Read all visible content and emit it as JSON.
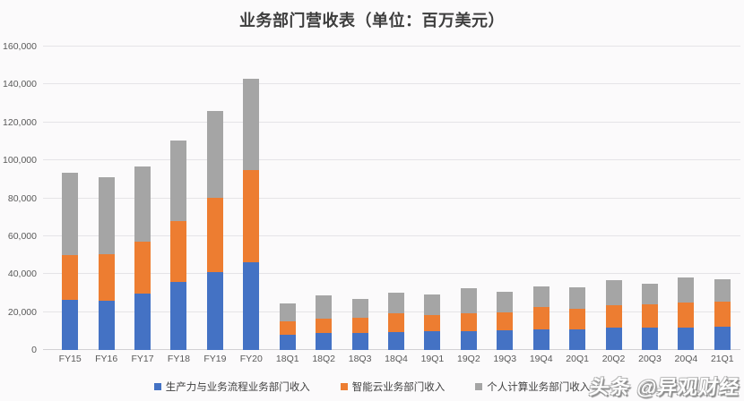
{
  "title": "业务部门营收表（单位：百万美元）",
  "watermark": {
    "text": "头条 @异观财经"
  },
  "colors": {
    "background": "#fbfafb",
    "gridline": "#e5e4e7",
    "axis_text": "#595959",
    "title_text": "#3d3d3d",
    "series_blue": "#4472C4",
    "series_orange": "#ED7D31",
    "series_gray": "#A5A5A5"
  },
  "y_axis": {
    "step": 20000,
    "ticks": [
      "0",
      "20,000",
      "40,000",
      "60,000",
      "80,000",
      "100,000",
      "120,000",
      "140,000",
      "160,000"
    ]
  },
  "chart_data": {
    "type": "bar",
    "stacked": true,
    "title": "业务部门营收表（单位：百万美元）",
    "xlabel": "",
    "ylabel": "",
    "ylim": [
      0,
      160000
    ],
    "grid": true,
    "legend_position": "bottom",
    "categories": [
      "FY15",
      "FY16",
      "FY17",
      "FY18",
      "FY19",
      "FY20",
      "18Q1",
      "18Q2",
      "18Q3",
      "18Q4",
      "19Q1",
      "19Q2",
      "19Q3",
      "19Q4",
      "20Q1",
      "20Q2",
      "20Q3",
      "20Q4",
      "21Q1"
    ],
    "series": [
      {
        "name": "生产力与业务流程业务部门收入",
        "color": "#4472C4",
        "values": [
          26430,
          25792,
          29870,
          35865,
          41160,
          46398,
          8238,
          8953,
          9059,
          9668,
          9771,
          10100,
          10242,
          11047,
          11077,
          11827,
          11743,
          11752,
          12319
        ]
      },
      {
        "name": "智能云业务部门收入",
        "color": "#ED7D31",
        "values": [
          23715,
          24952,
          27407,
          32219,
          38985,
          48366,
          6922,
          7795,
          7896,
          9606,
          8567,
          9378,
          9649,
          11391,
          10845,
          11869,
          12281,
          13371,
          12986
        ]
      },
      {
        "name": "个人计算业务部门收入",
        "color": "#A5A5A5",
        "values": [
          43160,
          40410,
          39294,
          42276,
          45698,
          48251,
          9379,
          12170,
          9864,
          10811,
          10746,
          12993,
          10680,
          11279,
          11133,
          13212,
          10995,
          12910,
          11849
        ]
      }
    ]
  }
}
